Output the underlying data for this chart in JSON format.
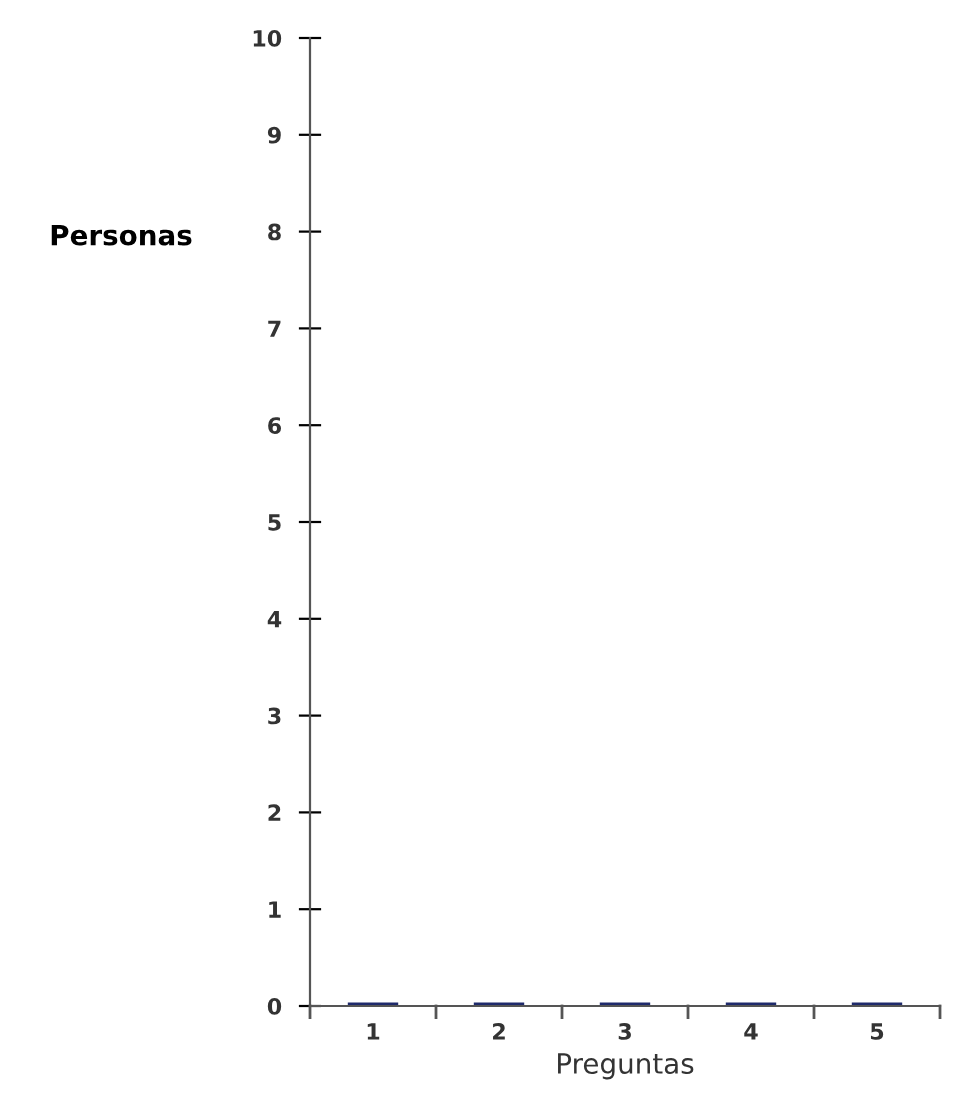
{
  "chart_data": {
    "type": "bar",
    "xlabel": "Preguntas",
    "ylabel": "Personas",
    "categories": [
      "1",
      "2",
      "3",
      "4",
      "5"
    ],
    "values": [
      0,
      0,
      0,
      0,
      0
    ],
    "color": "#1f2a6b",
    "ylim": [
      0,
      10
    ],
    "yticks": [
      0,
      1,
      2,
      3,
      4,
      5,
      6,
      7,
      8,
      9,
      10
    ],
    "grid": false,
    "legend": false
  }
}
